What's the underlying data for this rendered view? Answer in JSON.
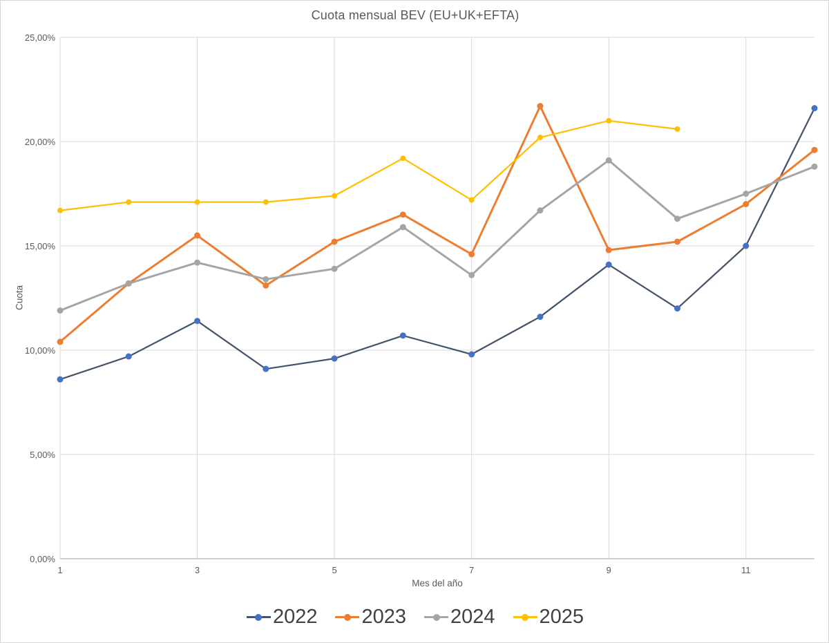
{
  "title": "Cuota mensual BEV (EU+UK+EFTA)",
  "axes": {
    "y_title": "Cuota",
    "x_title": "Mes del año",
    "ytick_labels": [
      "0,00%",
      "5,00%",
      "10,00%",
      "15,00%",
      "20,00%",
      "25,00%"
    ],
    "yticks": [
      0,
      5,
      10,
      15,
      20,
      25
    ],
    "xtick_labels": [
      "1",
      "3",
      "5",
      "7",
      "9",
      "11"
    ],
    "xticks": [
      1,
      3,
      5,
      7,
      9,
      11
    ]
  },
  "colors": {
    "gridline": "#D9D9D9",
    "axis_line": "#BFBFBF",
    "title_text": "#595959",
    "tick_text": "#595959",
    "legend_text": "#404040"
  },
  "chart_data": {
    "type": "line",
    "title": "Cuota mensual BEV (EU+UK+EFTA)",
    "xlabel": "Mes del año",
    "ylabel": "Cuota",
    "ylim": [
      0,
      25
    ],
    "xlim": [
      1,
      12
    ],
    "grid": true,
    "legend_position": "bottom",
    "x": [
      1,
      2,
      3,
      4,
      5,
      6,
      7,
      8,
      9,
      10,
      11,
      12
    ],
    "series": [
      {
        "name": "2022",
        "line_color": "#44546A",
        "marker_color": "#4472C4",
        "line_width": 2.25,
        "marker_radius": 4.5,
        "values": [
          8.6,
          9.7,
          11.4,
          9.1,
          9.6,
          10.7,
          9.8,
          11.6,
          14.1,
          12.0,
          15.0,
          21.6
        ]
      },
      {
        "name": "2023",
        "line_color": "#ED7D31",
        "marker_color": "#ED7D31",
        "line_width": 3,
        "marker_radius": 4.5,
        "values": [
          10.4,
          13.2,
          15.5,
          13.1,
          15.2,
          16.5,
          14.6,
          21.7,
          14.8,
          15.2,
          17.0,
          19.6
        ]
      },
      {
        "name": "2024",
        "line_color": "#A5A5A5",
        "marker_color": "#A5A5A5",
        "line_width": 3,
        "marker_radius": 4.5,
        "values": [
          11.9,
          13.2,
          14.2,
          13.4,
          13.9,
          15.9,
          13.6,
          16.7,
          19.1,
          16.3,
          17.5,
          18.8
        ]
      },
      {
        "name": "2025",
        "line_color": "#FFC000",
        "marker_color": "#FFC000",
        "line_width": 2.25,
        "marker_radius": 4,
        "values": [
          16.7,
          17.1,
          17.1,
          17.1,
          17.4,
          19.2,
          17.2,
          20.2,
          21.0,
          20.6
        ]
      }
    ]
  }
}
